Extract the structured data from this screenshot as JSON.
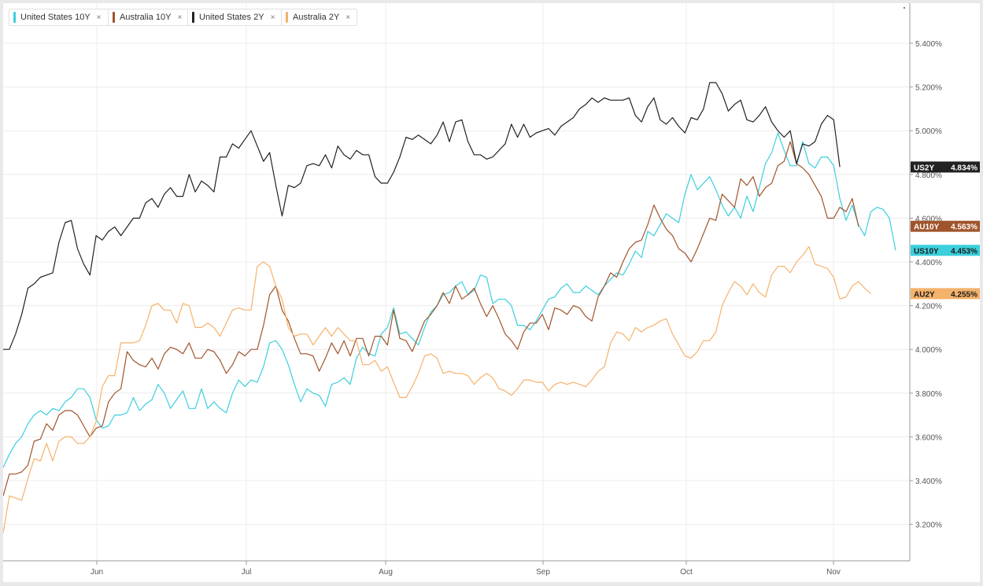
{
  "legend": [
    {
      "label": "United States 10Y",
      "color": "#3ccfdc"
    },
    {
      "label": "Australia 10Y",
      "color": "#a0542b"
    },
    {
      "label": "United States 2Y",
      "color": "#222222"
    },
    {
      "label": "Australia 2Y",
      "color": "#f5b26b"
    }
  ],
  "close_glyph": "×",
  "chart_data": {
    "type": "line",
    "x_ticks": [
      "Jun",
      "Jul",
      "Aug",
      "Sep",
      "Oct",
      "Nov"
    ],
    "y_ticks": [
      "5.400%",
      "5.200%",
      "5.000%",
      "4.800%",
      "4.600%",
      "4.400%",
      "4.200%",
      "4.000%",
      "3.800%",
      "3.600%",
      "3.400%",
      "3.200%"
    ],
    "ylim": [
      3.05,
      5.55
    ],
    "y_unit": "%",
    "grid": true,
    "legend_position": "top-left",
    "series": [
      {
        "name": "United States 10Y",
        "tag": "US10Y",
        "last": "4.453%",
        "color": "#3ccfdc",
        "tag_text_color": "#1a1a1a",
        "values": [
          3.46,
          3.52,
          3.57,
          3.6,
          3.66,
          3.7,
          3.72,
          3.7,
          3.73,
          3.72,
          3.76,
          3.78,
          3.82,
          3.82,
          3.78,
          3.68,
          3.64,
          3.65,
          3.7,
          3.7,
          3.71,
          3.78,
          3.72,
          3.75,
          3.77,
          3.84,
          3.8,
          3.73,
          3.77,
          3.81,
          3.73,
          3.73,
          3.82,
          3.73,
          3.76,
          3.73,
          3.71,
          3.8,
          3.86,
          3.83,
          3.86,
          3.85,
          3.92,
          4.03,
          4.04,
          4.0,
          3.93,
          3.84,
          3.76,
          3.82,
          3.8,
          3.79,
          3.74,
          3.84,
          3.85,
          3.87,
          3.84,
          3.96,
          4.01,
          3.98,
          3.97,
          4.07,
          4.1,
          4.19,
          4.07,
          4.08,
          4.05,
          4.02,
          4.1,
          4.17,
          4.2,
          4.25,
          4.26,
          4.29,
          4.31,
          4.25,
          4.27,
          4.34,
          4.33,
          4.21,
          4.23,
          4.23,
          4.2,
          4.11,
          4.11,
          4.09,
          4.13,
          4.18,
          4.23,
          4.24,
          4.28,
          4.3,
          4.26,
          4.26,
          4.29,
          4.27,
          4.25,
          4.29,
          4.32,
          4.35,
          4.34,
          4.39,
          4.45,
          4.42,
          4.54,
          4.52,
          4.57,
          4.62,
          4.6,
          4.58,
          4.71,
          4.8,
          4.73,
          4.76,
          4.79,
          4.73,
          4.66,
          4.61,
          4.65,
          4.6,
          4.7,
          4.63,
          4.74,
          4.85,
          4.9,
          4.99,
          4.91,
          4.84,
          4.84,
          4.95,
          4.85,
          4.83,
          4.88,
          4.88,
          4.84,
          4.69,
          4.59,
          4.66,
          4.57,
          4.52,
          4.63,
          4.65,
          4.64,
          4.6,
          4.453
        ]
      },
      {
        "name": "Australia 10Y",
        "tag": "AU10Y",
        "last": "4.563%",
        "color": "#a0542b",
        "tag_text_color": "#ffffff",
        "values": [
          3.33,
          3.43,
          3.43,
          3.44,
          3.47,
          3.58,
          3.59,
          3.66,
          3.63,
          3.7,
          3.72,
          3.72,
          3.7,
          3.65,
          3.6,
          3.64,
          3.65,
          3.76,
          3.8,
          3.82,
          3.99,
          3.95,
          3.93,
          3.92,
          3.96,
          3.91,
          3.98,
          4.01,
          4.0,
          3.98,
          4.03,
          3.96,
          3.96,
          4.0,
          3.99,
          3.95,
          3.89,
          3.93,
          3.99,
          3.97,
          4.0,
          4.0,
          4.11,
          4.25,
          4.29,
          4.18,
          4.13,
          4.05,
          3.98,
          3.98,
          3.97,
          3.9,
          3.96,
          4.03,
          3.98,
          4.04,
          3.97,
          4.05,
          4.05,
          3.97,
          4.06,
          4.06,
          4.02,
          4.18,
          4.05,
          4.04,
          3.99,
          4.06,
          4.13,
          4.16,
          4.2,
          4.26,
          4.21,
          4.29,
          4.23,
          4.25,
          4.28,
          4.21,
          4.15,
          4.2,
          4.14,
          4.07,
          4.04,
          4.0,
          4.08,
          4.12,
          4.12,
          4.16,
          4.09,
          4.19,
          4.18,
          4.16,
          4.2,
          4.19,
          4.15,
          4.13,
          4.24,
          4.29,
          4.35,
          4.33,
          4.4,
          4.46,
          4.49,
          4.5,
          4.57,
          4.66,
          4.6,
          4.55,
          4.52,
          4.46,
          4.44,
          4.4,
          4.46,
          4.53,
          4.6,
          4.59,
          4.71,
          4.68,
          4.65,
          4.78,
          4.75,
          4.79,
          4.7,
          4.74,
          4.76,
          4.84,
          4.86,
          4.95,
          4.85,
          4.83,
          4.8,
          4.75,
          4.7,
          4.6,
          4.6,
          4.65,
          4.63,
          4.69,
          4.563
        ]
      },
      {
        "name": "United States 2Y",
        "tag": "US2Y",
        "last": "4.834%",
        "color": "#222222",
        "tag_text_color": "#ffffff",
        "values": [
          4.0,
          4.0,
          4.07,
          4.16,
          4.28,
          4.3,
          4.33,
          4.34,
          4.35,
          4.49,
          4.58,
          4.59,
          4.46,
          4.39,
          4.34,
          4.52,
          4.5,
          4.54,
          4.56,
          4.52,
          4.56,
          4.6,
          4.6,
          4.67,
          4.69,
          4.65,
          4.71,
          4.74,
          4.7,
          4.7,
          4.8,
          4.72,
          4.77,
          4.75,
          4.72,
          4.88,
          4.88,
          4.94,
          4.92,
          4.96,
          5.0,
          4.93,
          4.86,
          4.9,
          4.75,
          4.61,
          4.75,
          4.74,
          4.76,
          4.84,
          4.85,
          4.84,
          4.89,
          4.83,
          4.93,
          4.89,
          4.87,
          4.91,
          4.89,
          4.89,
          4.79,
          4.76,
          4.76,
          4.81,
          4.88,
          4.97,
          4.96,
          4.98,
          4.96,
          4.94,
          4.98,
          5.04,
          4.95,
          5.04,
          5.05,
          4.95,
          4.89,
          4.89,
          4.87,
          4.88,
          4.91,
          4.94,
          5.03,
          4.97,
          5.03,
          4.97,
          4.99,
          5.0,
          5.01,
          4.98,
          5.02,
          5.04,
          5.06,
          5.1,
          5.12,
          5.15,
          5.13,
          5.15,
          5.14,
          5.14,
          5.14,
          5.15,
          5.07,
          5.04,
          5.11,
          5.15,
          5.05,
          5.03,
          5.06,
          5.02,
          4.99,
          5.06,
          5.05,
          5.1,
          5.22,
          5.22,
          5.17,
          5.09,
          5.12,
          5.14,
          5.05,
          5.04,
          5.07,
          5.11,
          5.04,
          5.0,
          4.97,
          5.0,
          4.85,
          4.94,
          4.93,
          4.95,
          5.03,
          5.07,
          5.05,
          4.834
        ]
      },
      {
        "name": "Australia 2Y",
        "tag": "AU2Y",
        "last": "4.255%",
        "color": "#f5b26b",
        "tag_text_color": "#1a1a1a",
        "values": [
          3.16,
          3.33,
          3.32,
          3.31,
          3.41,
          3.5,
          3.49,
          3.57,
          3.49,
          3.58,
          3.6,
          3.6,
          3.57,
          3.57,
          3.6,
          3.67,
          3.83,
          3.88,
          3.88,
          4.03,
          4.03,
          4.03,
          4.04,
          4.11,
          4.2,
          4.21,
          4.18,
          4.18,
          4.12,
          4.21,
          4.2,
          4.1,
          4.1,
          4.12,
          4.1,
          4.06,
          4.12,
          4.18,
          4.19,
          4.18,
          4.18,
          4.38,
          4.4,
          4.38,
          4.29,
          4.23,
          4.1,
          4.06,
          4.07,
          4.07,
          4.02,
          4.06,
          4.1,
          4.06,
          4.1,
          4.07,
          4.04,
          4.04,
          3.93,
          3.93,
          3.95,
          3.9,
          3.92,
          3.85,
          3.78,
          3.78,
          3.83,
          3.89,
          3.97,
          3.98,
          3.96,
          3.89,
          3.9,
          3.89,
          3.89,
          3.88,
          3.84,
          3.87,
          3.89,
          3.87,
          3.82,
          3.81,
          3.79,
          3.82,
          3.86,
          3.86,
          3.85,
          3.85,
          3.81,
          3.84,
          3.85,
          3.84,
          3.85,
          3.84,
          3.83,
          3.86,
          3.9,
          3.92,
          4.03,
          4.08,
          4.07,
          4.04,
          4.1,
          4.08,
          4.1,
          4.11,
          4.13,
          4.14,
          4.07,
          4.02,
          3.97,
          3.96,
          3.99,
          4.04,
          4.04,
          4.08,
          4.2,
          4.26,
          4.31,
          4.29,
          4.25,
          4.3,
          4.26,
          4.24,
          4.34,
          4.38,
          4.38,
          4.35,
          4.4,
          4.43,
          4.47,
          4.39,
          4.38,
          4.37,
          4.33,
          4.23,
          4.24,
          4.29,
          4.31,
          4.28,
          4.255
        ]
      }
    ]
  }
}
